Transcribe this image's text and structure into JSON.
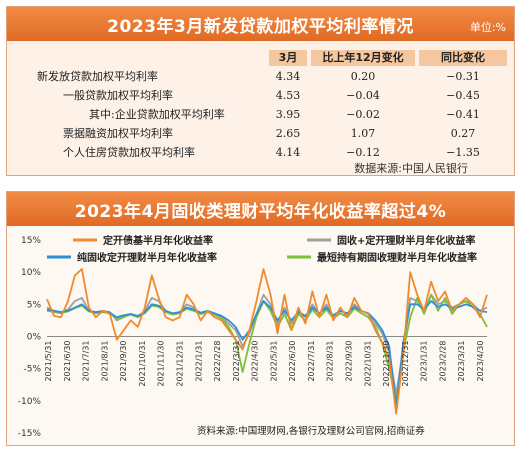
{
  "table": {
    "title": "2023年3月新发贷款加权平均利率情况",
    "unit": "单位:%",
    "headers": [
      "3月",
      "比上年12月变化",
      "同比变化"
    ],
    "rows": [
      {
        "label": "新发放贷款加权平均利率",
        "values": [
          "4.34",
          "0.20",
          "−0.31"
        ]
      },
      {
        "label": "一般贷款加权平均利率",
        "values": [
          "4.53",
          "−0.04",
          "−0.45"
        ]
      },
      {
        "label": "其中:企业贷款加权平均利率",
        "values": [
          "3.95",
          "−0.02",
          "−0.41"
        ]
      },
      {
        "label": "票据融资加权平均利率",
        "values": [
          "2.65",
          "1.07",
          "0.27"
        ]
      },
      {
        "label": "个人住房贷款加权平均利率",
        "values": [
          "4.14",
          "−0.12",
          "−1.35"
        ]
      }
    ],
    "source": "数据来源:中国人民银行"
  },
  "chart": {
    "title": "2023年4月固收类理财平均年化收益率超过4%",
    "source": "资料来源:中国理财网,各银行及理财公司官网,招商证券"
  },
  "colors": {
    "orange": "#f08a2e",
    "gray": "#a0a0a0",
    "blue": "#2f8fd6",
    "green": "#7cbf3a",
    "title_bg": "#e8762e"
  },
  "chart_data": {
    "type": "line",
    "ylim": [
      -15,
      15
    ],
    "yticks": [
      "15%",
      "10%",
      "5%",
      "0%",
      "-5%",
      "-10%",
      "-15%"
    ],
    "ytick_values": [
      15,
      10,
      5,
      0,
      -5,
      -10,
      -15
    ],
    "xticks": [
      "2021/5/31",
      "2021/6/30",
      "2021/7/31",
      "2021/8/31",
      "2021/9/30",
      "2021/10/31",
      "2021/11/30",
      "2021/12/31",
      "2022/1/31",
      "2022/2/28",
      "2022/3/31",
      "2022/4/30",
      "2022/5/31",
      "2022/6/30",
      "2022/7/31",
      "2022/8/31",
      "2022/9/30",
      "2022/10/31",
      "2022/11/30",
      "2022/12/31",
      "2023/1/31",
      "2023/2/28",
      "2023/3/31",
      "2023/4/30"
    ],
    "series": [
      {
        "name": "定开债基半月年化收益率",
        "color": "#f08a2e",
        "values": [
          5.8,
          3.2,
          3.0,
          5.5,
          9.5,
          10.5,
          4.5,
          3.0,
          4.0,
          3.5,
          -0.5,
          1.0,
          2.5,
          1.5,
          4.5,
          9.5,
          6.0,
          3.0,
          2.5,
          3.0,
          6.5,
          5.0,
          2.5,
          4.0,
          3.0,
          2.5,
          1.0,
          -0.5,
          -2.0,
          1.0,
          5.5,
          10.5,
          6.5,
          0.5,
          6.5,
          1.0,
          4.5,
          2.0,
          7.0,
          3.0,
          6.5,
          2.5,
          4.5,
          3.0,
          6.0,
          4.0,
          3.5,
          1.0,
          -1.0,
          -3.5,
          -12.0,
          -3.0,
          10.0,
          6.5,
          4.0,
          8.5,
          5.5,
          7.0,
          4.0,
          5.0,
          6.0,
          5.0,
          3.0,
          6.5
        ]
      },
      {
        "name": "固收+定开理财半月年化收益率",
        "color": "#a0a0a0",
        "values": [
          4.5,
          4.0,
          3.8,
          4.2,
          5.5,
          6.0,
          4.0,
          3.8,
          4.0,
          3.8,
          2.5,
          3.0,
          3.5,
          3.0,
          4.0,
          6.0,
          5.5,
          4.0,
          3.5,
          3.8,
          5.0,
          4.5,
          3.5,
          4.0,
          3.5,
          3.0,
          2.0,
          1.0,
          -1.5,
          0.5,
          3.5,
          6.5,
          5.0,
          2.0,
          4.5,
          2.0,
          4.0,
          3.0,
          5.0,
          3.5,
          5.0,
          3.0,
          4.0,
          3.5,
          5.0,
          4.0,
          3.5,
          2.0,
          0.5,
          -2.5,
          -9.0,
          -2.0,
          6.0,
          5.5,
          4.0,
          6.5,
          5.0,
          5.5,
          4.5,
          5.0,
          5.5,
          5.0,
          4.0,
          4.5
        ]
      },
      {
        "name": "纯固收定开理财半月年化收益率",
        "color": "#2f8fd6",
        "values": [
          4.2,
          4.0,
          3.8,
          4.0,
          4.5,
          5.0,
          4.0,
          3.8,
          3.9,
          3.7,
          3.0,
          3.3,
          3.5,
          3.2,
          3.8,
          5.0,
          4.8,
          4.0,
          3.6,
          3.8,
          4.5,
          4.2,
          3.7,
          4.0,
          3.6,
          3.2,
          2.5,
          1.5,
          -0.5,
          1.0,
          3.5,
          5.5,
          4.5,
          2.5,
          4.0,
          2.5,
          3.8,
          3.2,
          4.5,
          3.6,
          4.5,
          3.3,
          4.0,
          3.6,
          4.6,
          4.0,
          3.6,
          2.5,
          1.0,
          -1.5,
          -11.0,
          -1.0,
          5.0,
          5.0,
          4.2,
          5.5,
          4.6,
          5.0,
          4.3,
          4.6,
          5.0,
          4.6,
          4.0,
          3.8
        ]
      },
      {
        "name": "最短持有期固收理财半月年化收益率",
        "color": "#7cbf3a",
        "values": [
          4.0,
          3.8,
          3.6,
          3.9,
          4.4,
          4.8,
          3.9,
          3.6,
          3.8,
          3.6,
          2.8,
          3.1,
          3.4,
          3.0,
          3.6,
          4.8,
          4.6,
          3.8,
          3.4,
          3.6,
          4.3,
          4.0,
          3.5,
          3.8,
          3.4,
          2.8,
          1.5,
          -0.5,
          -5.5,
          -1.0,
          3.0,
          5.5,
          4.0,
          1.5,
          3.5,
          1.0,
          3.5,
          2.5,
          4.2,
          3.0,
          4.2,
          2.8,
          3.6,
          3.0,
          4.3,
          3.6,
          3.0,
          1.5,
          -1.0,
          -5.0,
          -10.0,
          -2.5,
          3.0,
          6.0,
          3.5,
          6.5,
          4.0,
          6.0,
          3.5,
          5.0,
          5.5,
          4.5,
          3.5,
          1.5
        ]
      }
    ]
  }
}
